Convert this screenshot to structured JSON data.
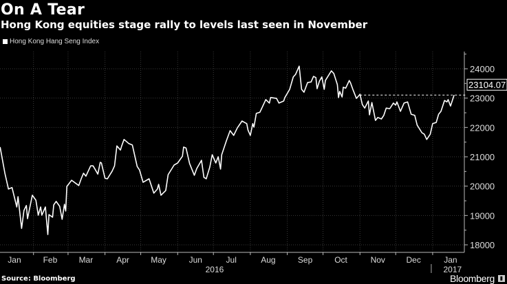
{
  "header": {
    "title": "On A Tear",
    "subtitle": "Hong Kong equities stage rally to levels last seen in November"
  },
  "footer": {
    "source": "Source: Bloomberg",
    "brand": "Bloomberg"
  },
  "chart_data": {
    "type": "line",
    "title": "On A Tear",
    "subtitle": "Hong Kong equities stage rally to levels last seen in November",
    "legend": [
      "Hong Kong Hang Seng Index"
    ],
    "legend_position": "top-left",
    "x_unit": "days since 2016-01-01",
    "xlim": [
      -3,
      395
    ],
    "ylim": [
      17700,
      24600
    ],
    "grid": true,
    "y_ticks": [
      18000,
      19000,
      20000,
      21000,
      22000,
      23000,
      24000
    ],
    "y_tick_labels": [
      "18000",
      "19000",
      "20000",
      "21000",
      "22000",
      "23000",
      "24000"
    ],
    "x_ticks": [
      {
        "label": "Jan",
        "day": 15
      },
      {
        "label": "Feb",
        "day": 45
      },
      {
        "label": "Mar",
        "day": 75
      },
      {
        "label": "Apr",
        "day": 106
      },
      {
        "label": "May",
        "day": 136
      },
      {
        "label": "Jun",
        "day": 167
      },
      {
        "label": "Jul",
        "day": 197
      },
      {
        "label": "Aug",
        "day": 228
      },
      {
        "label": "Sep",
        "day": 259
      },
      {
        "label": "Oct",
        "day": 289
      },
      {
        "label": "Nov",
        "day": 320
      },
      {
        "label": "Dec",
        "day": 350
      },
      {
        "label": "Jan",
        "day": 381
      }
    ],
    "month_boundaries": [
      31,
      60,
      91,
      121,
      152,
      182,
      213,
      244,
      274,
      305,
      335,
      366
    ],
    "year_labels": [
      {
        "label": "2016",
        "day": 183
      },
      {
        "label": "2017",
        "day": 375
      }
    ],
    "last_value_label": "23104.07",
    "last_value": 23104.07,
    "series": [
      {
        "name": "Hong Kong Hang Seng Index",
        "points": [
          [
            3,
            21330
          ],
          [
            7,
            20440
          ],
          [
            10,
            19900
          ],
          [
            13,
            19950
          ],
          [
            17,
            19290
          ],
          [
            18,
            19640
          ],
          [
            21,
            18560
          ],
          [
            23,
            19170
          ],
          [
            25,
            19340
          ],
          [
            26,
            18890
          ],
          [
            30,
            19690
          ],
          [
            33,
            19520
          ],
          [
            35,
            19010
          ],
          [
            37,
            19290
          ],
          [
            38,
            19010
          ],
          [
            41,
            19290
          ],
          [
            43,
            18350
          ],
          [
            44,
            19030
          ],
          [
            47,
            18940
          ],
          [
            48,
            19360
          ],
          [
            50,
            19480
          ],
          [
            53,
            19310
          ],
          [
            55,
            18870
          ],
          [
            57,
            19380
          ],
          [
            58,
            19150
          ],
          [
            59,
            19990
          ],
          [
            63,
            20200
          ],
          [
            69,
            20020
          ],
          [
            71,
            20250
          ],
          [
            73,
            20440
          ],
          [
            75,
            20340
          ],
          [
            79,
            20690
          ],
          [
            81,
            20690
          ],
          [
            83,
            20550
          ],
          [
            85,
            20410
          ],
          [
            87,
            20810
          ],
          [
            88,
            20790
          ],
          [
            91,
            20270
          ],
          [
            93,
            20250
          ],
          [
            97,
            20510
          ],
          [
            99,
            20690
          ],
          [
            101,
            21370
          ],
          [
            104,
            21230
          ],
          [
            105,
            21370
          ],
          [
            107,
            21590
          ],
          [
            111,
            21450
          ],
          [
            114,
            21400
          ],
          [
            118,
            20670
          ],
          [
            120,
            20550
          ],
          [
            123,
            20130
          ],
          [
            128,
            20250
          ],
          [
            132,
            19760
          ],
          [
            135,
            19900
          ],
          [
            136,
            20060
          ],
          [
            138,
            19690
          ],
          [
            142,
            19850
          ],
          [
            144,
            20390
          ],
          [
            149,
            20720
          ],
          [
            152,
            20790
          ],
          [
            156,
            21020
          ],
          [
            157,
            21330
          ],
          [
            159,
            21300
          ],
          [
            162,
            20770
          ],
          [
            166,
            20370
          ],
          [
            168,
            20600
          ],
          [
            172,
            20880
          ],
          [
            174,
            20300
          ],
          [
            176,
            20250
          ],
          [
            179,
            20650
          ],
          [
            181,
            21070
          ],
          [
            184,
            20790
          ],
          [
            186,
            21000
          ],
          [
            188,
            20580
          ],
          [
            189,
            21070
          ],
          [
            193,
            21560
          ],
          [
            196,
            21890
          ],
          [
            199,
            21730
          ],
          [
            202,
            21980
          ],
          [
            206,
            22220
          ],
          [
            210,
            22130
          ],
          [
            211,
            21910
          ],
          [
            213,
            21730
          ],
          [
            215,
            22130
          ],
          [
            216,
            22010
          ],
          [
            218,
            22480
          ],
          [
            221,
            22520
          ],
          [
            226,
            22950
          ],
          [
            229,
            22830
          ],
          [
            230,
            23020
          ],
          [
            235,
            22990
          ],
          [
            237,
            22830
          ],
          [
            241,
            22900
          ],
          [
            242,
            23020
          ],
          [
            246,
            23300
          ],
          [
            249,
            23720
          ],
          [
            251,
            23810
          ],
          [
            254,
            24090
          ],
          [
            256,
            23300
          ],
          [
            258,
            23200
          ],
          [
            261,
            23530
          ],
          [
            264,
            23550
          ],
          [
            266,
            23740
          ],
          [
            268,
            23700
          ],
          [
            269,
            23320
          ],
          [
            271,
            23580
          ],
          [
            273,
            23720
          ],
          [
            275,
            23300
          ],
          [
            276,
            23600
          ],
          [
            281,
            23930
          ],
          [
            283,
            23840
          ],
          [
            286,
            23460
          ],
          [
            287,
            23020
          ],
          [
            288,
            23230
          ],
          [
            290,
            23040
          ],
          [
            291,
            23370
          ],
          [
            293,
            23340
          ],
          [
            296,
            23600
          ],
          [
            297,
            23530
          ],
          [
            299,
            23300
          ],
          [
            302,
            22990
          ],
          [
            305,
            23130
          ],
          [
            307,
            22780
          ],
          [
            309,
            22660
          ],
          [
            312,
            22900
          ],
          [
            313,
            22430
          ],
          [
            315,
            22850
          ],
          [
            318,
            22240
          ],
          [
            320,
            22340
          ],
          [
            323,
            22290
          ],
          [
            325,
            22410
          ],
          [
            327,
            22660
          ],
          [
            330,
            22640
          ],
          [
            333,
            22830
          ],
          [
            335,
            22760
          ],
          [
            336,
            22870
          ],
          [
            339,
            22550
          ],
          [
            342,
            22830
          ],
          [
            345,
            22870
          ],
          [
            348,
            22450
          ],
          [
            351,
            22410
          ],
          [
            353,
            22080
          ],
          [
            357,
            21820
          ],
          [
            359,
            21770
          ],
          [
            361,
            21590
          ],
          [
            364,
            21770
          ],
          [
            366,
            22130
          ],
          [
            369,
            22170
          ],
          [
            371,
            22450
          ],
          [
            373,
            22550
          ],
          [
            376,
            22920
          ],
          [
            378,
            22870
          ],
          [
            379,
            22950
          ],
          [
            381,
            22730
          ],
          [
            384,
            23104.07
          ]
        ]
      }
    ],
    "colors": {
      "background": "#000000",
      "line": "#ffffff",
      "grid": "#3a3a3a",
      "axis": "#bbbbbb"
    }
  }
}
